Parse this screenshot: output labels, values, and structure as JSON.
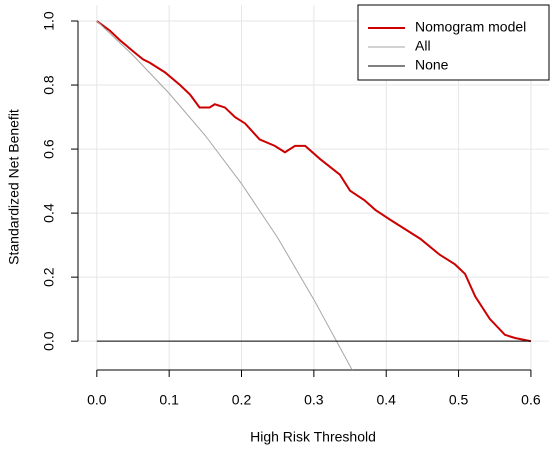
{
  "chart_data": {
    "type": "line",
    "x_label": "High Risk Threshold",
    "y_label": "Standardized Net Benefit",
    "xlim": [
      -0.026,
      0.625
    ],
    "ylim": [
      -0.09,
      1.05
    ],
    "xticks": [
      {
        "value": 0,
        "label": "0.0"
      },
      0.1,
      0.2,
      0.3,
      0.4,
      0.5,
      0.6
    ],
    "yticks": [
      {
        "value": 0,
        "label": "0.0"
      },
      0.2,
      0.4,
      0.6,
      0.8,
      {
        "value": 1,
        "label": "1.0"
      }
    ],
    "grid": true,
    "legend": "top-right",
    "series": [
      {
        "name": "Nomogram model",
        "color": "#cc0000",
        "x": [
          0,
          0.018,
          0.032,
          0.053,
          0.064,
          0.073,
          0.094,
          0.115,
          0.129,
          0.142,
          0.156,
          0.163,
          0.177,
          0.191,
          0.205,
          0.225,
          0.246,
          0.26,
          0.274,
          0.288,
          0.308,
          0.336,
          0.35,
          0.37,
          0.385,
          0.405,
          0.426,
          0.447,
          0.474,
          0.495,
          0.509,
          0.523,
          0.543,
          0.564,
          0.578,
          0.6
        ],
        "values": [
          1.0,
          0.97,
          0.94,
          0.9,
          0.88,
          0.87,
          0.84,
          0.8,
          0.77,
          0.73,
          0.73,
          0.74,
          0.73,
          0.7,
          0.68,
          0.63,
          0.61,
          0.59,
          0.61,
          0.61,
          0.57,
          0.52,
          0.47,
          0.44,
          0.41,
          0.38,
          0.35,
          0.32,
          0.27,
          0.24,
          0.21,
          0.14,
          0.07,
          0.02,
          0.01,
          0.0
        ]
      },
      {
        "name": "All",
        "color": "#a6a6a6",
        "x": [
          0,
          0.05,
          0.1,
          0.15,
          0.2,
          0.25,
          0.3,
          0.353
        ],
        "values": [
          1.0,
          0.893,
          0.774,
          0.642,
          0.492,
          0.323,
          0.13,
          -0.09
        ]
      },
      {
        "name": "None",
        "color": "#000000",
        "x": [
          0,
          0.6
        ],
        "values": [
          0,
          0
        ]
      }
    ]
  }
}
